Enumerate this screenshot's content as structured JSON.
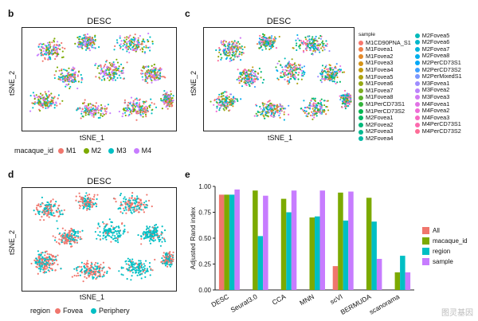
{
  "panels": {
    "b": {
      "letter": "b",
      "title": "DESC",
      "xlabel": "tSNE_1",
      "ylabel": "tSNE_2",
      "legend_title": "macaque_id",
      "legend": [
        {
          "label": "M1",
          "color": "#f0766d"
        },
        {
          "label": "M2",
          "color": "#7caa00"
        },
        {
          "label": "M3",
          "color": "#00bfc4"
        },
        {
          "label": "M4",
          "color": "#c77cff"
        }
      ]
    },
    "c": {
      "letter": "c",
      "title": "DESC",
      "xlabel": "tSNE_1",
      "ylabel": "tSNE_2",
      "legend_title": "sample",
      "legend_col1": [
        {
          "label": "M1CD90PNA_S1",
          "color": "#f8766d"
        },
        {
          "label": "M1Fovea1",
          "color": "#f07f4a"
        },
        {
          "label": "M1Fovea2",
          "color": "#e48a2a"
        },
        {
          "label": "M1Fovea3",
          "color": "#d59318"
        },
        {
          "label": "M1Fovea4",
          "color": "#c39b10"
        },
        {
          "label": "M1Fovea5",
          "color": "#aea20f"
        },
        {
          "label": "M1Fovea6",
          "color": "#96a815"
        },
        {
          "label": "M1Fovea7",
          "color": "#7bad1f"
        },
        {
          "label": "M1Fovea8",
          "color": "#5cb02c"
        },
        {
          "label": "M1PerCD73S1",
          "color": "#34b33c"
        },
        {
          "label": "M1PerCD73S2",
          "color": "#00b54f"
        },
        {
          "label": "M2Fovea1",
          "color": "#00b764"
        },
        {
          "label": "M2Fovea2",
          "color": "#00b87a"
        },
        {
          "label": "M2Fovea3",
          "color": "#00b990"
        },
        {
          "label": "M2Fovea4",
          "color": "#00b9a5"
        }
      ],
      "legend_col2": [
        {
          "label": "M2Fovea5",
          "color": "#00b9b9"
        },
        {
          "label": "M2Fovea6",
          "color": "#00b7cc"
        },
        {
          "label": "M2Fovea7",
          "color": "#00b4dd"
        },
        {
          "label": "M2Fovea8",
          "color": "#00afec"
        },
        {
          "label": "M2PerCD73S1",
          "color": "#00a8f7"
        },
        {
          "label": "M2PerCD73S2",
          "color": "#3ea0ff"
        },
        {
          "label": "M2PerMixedS1",
          "color": "#7a97ff"
        },
        {
          "label": "M3Fovea1",
          "color": "#9e8dff"
        },
        {
          "label": "M3Fovea2",
          "color": "#bb83fb"
        },
        {
          "label": "M3Fovea3",
          "color": "#d17af2"
        },
        {
          "label": "M4Fovea1",
          "color": "#e172e6"
        },
        {
          "label": "M4Fovea2",
          "color": "#ee6cd6"
        },
        {
          "label": "M4Fovea3",
          "color": "#f769c3"
        },
        {
          "label": "M4PerCD73S1",
          "color": "#fc69ae"
        },
        {
          "label": "M4PerCD73S2",
          "color": "#fd6c97"
        }
      ]
    },
    "d": {
      "letter": "d",
      "title": "DESC",
      "xlabel": "tSNE_1",
      "ylabel": "tSNE_2",
      "legend_title": "region",
      "legend": [
        {
          "label": "Fovea",
          "color": "#f0766d"
        },
        {
          "label": "Periphery",
          "color": "#00bfc4"
        }
      ]
    },
    "e": {
      "letter": "e"
    }
  },
  "chart_data": [
    {
      "type": "scatter",
      "panel": "b",
      "title": "DESC",
      "xlabel": "tSNE_1",
      "ylabel": "tSNE_2",
      "series": [
        {
          "name": "M1",
          "color": "#f0766d"
        },
        {
          "name": "M2",
          "color": "#7caa00"
        },
        {
          "name": "M3",
          "color": "#00bfc4"
        },
        {
          "name": "M4",
          "color": "#c77cff"
        }
      ]
    },
    {
      "type": "scatter",
      "panel": "c",
      "title": "DESC",
      "xlabel": "tSNE_1",
      "ylabel": "tSNE_2"
    },
    {
      "type": "scatter",
      "panel": "d",
      "title": "DESC",
      "xlabel": "tSNE_1",
      "ylabel": "tSNE_2",
      "series": [
        {
          "name": "Fovea",
          "color": "#f0766d"
        },
        {
          "name": "Periphery",
          "color": "#00bfc4"
        }
      ]
    },
    {
      "type": "bar",
      "panel": "e",
      "categories": [
        "DESC",
        "Seurat3.0",
        "CCA",
        "MNN",
        "scVI",
        "BERMUDA",
        "scanorama"
      ],
      "ylabel": "Adjusted Rand index",
      "ylim": [
        0,
        1.0
      ],
      "yticks": [
        "0.00",
        "0.25",
        "0.50",
        "0.75",
        "1.00"
      ],
      "series": [
        {
          "name": "All",
          "color": "#f0766d",
          "values": [
            0.92,
            null,
            null,
            null,
            0.23,
            null,
            null
          ]
        },
        {
          "name": "macaque_id",
          "color": "#7caa00",
          "values": [
            0.92,
            0.96,
            0.88,
            0.7,
            0.94,
            0.89,
            0.17
          ]
        },
        {
          "name": "region",
          "color": "#00bfc4",
          "values": [
            0.92,
            0.52,
            0.75,
            0.71,
            0.67,
            0.66,
            0.33
          ]
        },
        {
          "name": "sample",
          "color": "#c77cff",
          "values": [
            0.97,
            0.91,
            0.96,
            0.96,
            0.95,
            0.3,
            0.17
          ]
        }
      ]
    }
  ],
  "watermark": "图灵基因"
}
